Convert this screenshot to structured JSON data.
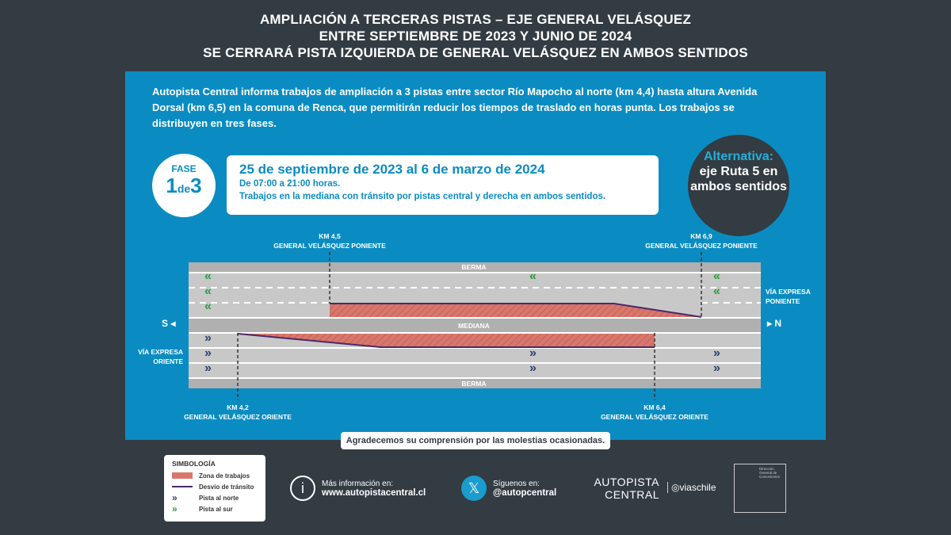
{
  "header": {
    "line1": "AMPLIACIÓN A TERCERAS PISTAS – EJE GENERAL VELÁSQUEZ",
    "line2": "ENTRE SEPTIEMBRE DE 2023 Y JUNIO DE 2024",
    "line3": "SE CERRARÁ PISTA IZQUIERDA DE GENERAL VELÁSQUEZ EN AMBOS SENTIDOS"
  },
  "intro": "Autopista Central informa trabajos de ampliación a 3 pistas entre sector Río Mapocho al norte (km 4,4) hasta altura Avenida Dorsal (km 6,5) en la comuna de Renca, que permitirán reducir los tiempos de traslado en horas punta. Los trabajos se distribuyen en tres fases.",
  "fase": {
    "label": "FASE",
    "num": "1",
    "de": "de",
    "total": "3"
  },
  "dates": {
    "range": "25 de septiembre de 2023 al 6 de marzo de 2024",
    "hours": "De 07:00 a 21:00 horas.",
    "desc": "Trabajos en la mediana con tránsito por pistas central y derecha en ambos sentidos."
  },
  "alt": {
    "title": "Alternativa:",
    "body": "eje Ruta 5 en ambos sentidos"
  },
  "diagram": {
    "km45": "KM 4,5",
    "km45name": "GENERAL VELÁSQUEZ PONIENTE",
    "km69": "KM 6,9",
    "km69name": "GENERAL VELÁSQUEZ PONIENTE",
    "km42": "KM 4,2",
    "km42name": "GENERAL VELÁSQUEZ ORIENTE",
    "km64": "KM 6,4",
    "km64name": "GENERAL VELÁSQUEZ ORIENTE",
    "berma": "BERMA",
    "mediana": "MEDIANA",
    "south": "S",
    "north": "N",
    "poniente": "VÍA EXPRESA PONIENTE",
    "oriente": "VÍA EXPRESA ORIENTE",
    "arrow_s": "«",
    "arrow_n": "»"
  },
  "thanks": "Agradecemos su comprensión por las molestias ocasionadas.",
  "legend": {
    "title": "SIMBOLOGÍA",
    "items": [
      "Zona de trabajos",
      "Desvío de tránsito",
      "Pista al norte",
      "Pista al sur"
    ]
  },
  "info": {
    "label": "Más información en:",
    "url": "www.autopistacentral.cl"
  },
  "social": {
    "label": "Síguenos en:",
    "handle": "@autopcentral"
  },
  "logos": {
    "autopista": "AUTOPISTA CENTRAL",
    "vias": "viaschile",
    "gob": "Dirección General de Concesiones"
  },
  "colors": {
    "bg": "#333b43",
    "panel": "#0a8cc2",
    "work": "#d9776c",
    "detour": "#4a2a6a",
    "north_arrow": "#2a3f6e",
    "south_arrow": "#2a9a3f"
  }
}
